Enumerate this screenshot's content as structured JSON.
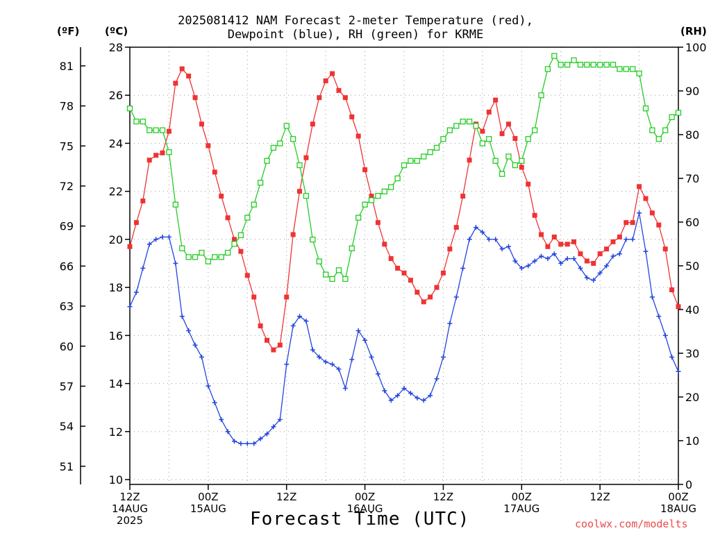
{
  "title_line1": "2025081412 NAM Forecast 2-meter Temperature (red),",
  "title_line2": "Dewpoint (blue), RH (green) for KRME",
  "units": {
    "fahrenheit": "(ºF)",
    "celsius": "(ºC)",
    "rh": "(RH)"
  },
  "xlabel": "Forecast Time (UTC)",
  "credit": "coolwx.com/modelts",
  "colors": {
    "temperature": "#ee3333",
    "dewpoint": "#2244dd",
    "rh": "#22cc22",
    "grid": "#999999"
  },
  "chart_data": {
    "type": "line",
    "x_range_hours": [
      0,
      84
    ],
    "x_ticks": [
      {
        "hour": 0,
        "lines": [
          "12Z",
          "14AUG",
          "2025"
        ]
      },
      {
        "hour": 12,
        "lines": [
          "00Z",
          "15AUG"
        ]
      },
      {
        "hour": 24,
        "lines": [
          "12Z"
        ]
      },
      {
        "hour": 36,
        "lines": [
          "00Z",
          "16AUG"
        ]
      },
      {
        "hour": 48,
        "lines": [
          "12Z"
        ]
      },
      {
        "hour": 60,
        "lines": [
          "00Z",
          "17AUG"
        ]
      },
      {
        "hour": 72,
        "lines": [
          "12Z"
        ]
      },
      {
        "hour": 84,
        "lines": [
          "00Z",
          "18AUG"
        ]
      }
    ],
    "y_celsius": {
      "range": [
        9.8,
        28
      ],
      "ticks": [
        "10",
        "12",
        "14",
        "16",
        "18",
        "20",
        "22",
        "24",
        "26",
        "28"
      ]
    },
    "y_fahrenheit_ticks": [
      "51",
      "54",
      "57",
      "60",
      "63",
      "66",
      "69",
      "72",
      "75",
      "78",
      "81"
    ],
    "y_rh": {
      "range": [
        0,
        100
      ],
      "ticks": [
        "0",
        "10",
        "20",
        "30",
        "40",
        "50",
        "60",
        "70",
        "80",
        "90",
        "100"
      ]
    },
    "x_hours": [
      0,
      1,
      2,
      3,
      4,
      5,
      6,
      7,
      8,
      9,
      10,
      11,
      12,
      13,
      14,
      15,
      16,
      17,
      18,
      19,
      20,
      21,
      22,
      23,
      24,
      25,
      26,
      27,
      28,
      29,
      30,
      31,
      32,
      33,
      34,
      35,
      36,
      37,
      38,
      39,
      40,
      41,
      42,
      43,
      44,
      45,
      46,
      47,
      48,
      49,
      50,
      51,
      52,
      53,
      54,
      55,
      56,
      57,
      58,
      59,
      60,
      61,
      62,
      63,
      64,
      65,
      66,
      67,
      68,
      69,
      70,
      71,
      72,
      73,
      74,
      75,
      76,
      77,
      78,
      79,
      80,
      81,
      82,
      83,
      84
    ],
    "series": [
      {
        "name": "Temperature",
        "axis": "celsius",
        "marker": "filled-square",
        "values": [
          19.7,
          20.7,
          21.6,
          23.3,
          23.5,
          23.6,
          24.5,
          26.5,
          27.1,
          26.8,
          25.9,
          24.8,
          23.9,
          22.8,
          21.8,
          20.9,
          20.0,
          19.5,
          18.5,
          17.6,
          16.4,
          15.8,
          15.4,
          15.6,
          17.6,
          20.2,
          22.0,
          23.4,
          24.8,
          25.9,
          26.6,
          26.9,
          26.2,
          25.9,
          25.1,
          24.3,
          22.9,
          21.8,
          20.7,
          19.8,
          19.2,
          18.8,
          18.6,
          18.3,
          17.8,
          17.4,
          17.6,
          18.0,
          18.6,
          19.6,
          20.5,
          21.8,
          23.3,
          24.8,
          24.5,
          25.3,
          25.8,
          24.4,
          24.8,
          24.2,
          23.0,
          22.3,
          21.0,
          20.2,
          19.7,
          20.1,
          19.8,
          19.8,
          19.9,
          19.4,
          19.1,
          19.0,
          19.4,
          19.6,
          19.9,
          20.1,
          20.7,
          20.7,
          22.2,
          21.7,
          21.1,
          20.6,
          19.6,
          17.9,
          17.2
        ]
      },
      {
        "name": "Dewpoint",
        "axis": "celsius",
        "marker": "plus",
        "values": [
          17.2,
          17.8,
          18.8,
          19.8,
          20.0,
          20.1,
          20.1,
          19.0,
          16.8,
          16.2,
          15.6,
          15.1,
          13.9,
          13.2,
          12.5,
          12.0,
          11.6,
          11.5,
          11.5,
          11.5,
          11.7,
          11.9,
          12.2,
          12.5,
          14.8,
          16.4,
          16.8,
          16.6,
          15.4,
          15.1,
          14.9,
          14.8,
          14.6,
          13.8,
          15.0,
          16.2,
          15.8,
          15.1,
          14.4,
          13.7,
          13.3,
          13.5,
          13.8,
          13.6,
          13.4,
          13.3,
          13.5,
          14.2,
          15.1,
          16.5,
          17.6,
          18.8,
          20.0,
          20.5,
          20.3,
          20.0,
          20.0,
          19.6,
          19.7,
          19.1,
          18.8,
          18.9,
          19.1,
          19.3,
          19.2,
          19.4,
          19.0,
          19.2,
          19.2,
          18.8,
          18.4,
          18.3,
          18.6,
          18.9,
          19.3,
          19.4,
          20.0,
          20.0,
          21.1,
          19.5,
          17.6,
          16.8,
          16.0,
          15.1,
          14.5
        ]
      },
      {
        "name": "RH",
        "axis": "rh",
        "marker": "open-square",
        "values": [
          86,
          83,
          83,
          81,
          81,
          81,
          76,
          64,
          54,
          52,
          52,
          53,
          51,
          52,
          52,
          53,
          55,
          57,
          61,
          64,
          69,
          74,
          77,
          78,
          82,
          79,
          73,
          66,
          56,
          51,
          48,
          47,
          49,
          47,
          54,
          61,
          64,
          65,
          66,
          67,
          68,
          70,
          73,
          74,
          74,
          75,
          76,
          77,
          79,
          81,
          82,
          83,
          83,
          82,
          78,
          79,
          74,
          71,
          75,
          73,
          74,
          79,
          81,
          89,
          95,
          98,
          96,
          96,
          97,
          96,
          96,
          96,
          96,
          96,
          96,
          95,
          95,
          95,
          94,
          86,
          81,
          79,
          81,
          84,
          85
        ]
      }
    ]
  }
}
